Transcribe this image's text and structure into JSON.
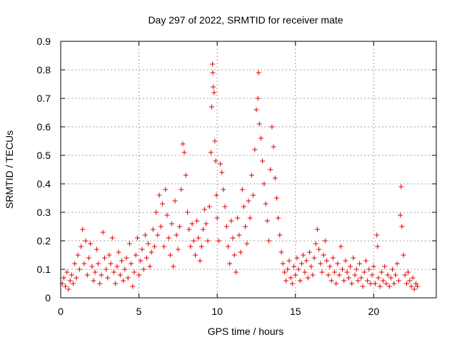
{
  "chart_data": {
    "type": "scatter",
    "title": "Day 297 of 2022, SRMTID for receiver mate",
    "xlabel": "GPS time / hours",
    "ylabel": "SRMTID / TECUs",
    "xlim": [
      0,
      24
    ],
    "ylim": [
      0,
      0.9
    ],
    "xticks": [
      0,
      5,
      10,
      15,
      20
    ],
    "yticks": [
      0,
      0.1,
      0.2,
      0.3,
      0.4,
      0.5,
      0.6,
      0.7,
      0.8,
      0.9
    ],
    "grid": true,
    "marker": "+",
    "color": "#e00000",
    "series": [
      {
        "name": "SRMTID",
        "points": [
          [
            0.1,
            0.05
          ],
          [
            0.2,
            0.07
          ],
          [
            0.3,
            0.04
          ],
          [
            0.4,
            0.09
          ],
          [
            0.5,
            0.03
          ],
          [
            0.6,
            0.06
          ],
          [
            0.7,
            0.08
          ],
          [
            0.8,
            0.05
          ],
          [
            0.9,
            0.12
          ],
          [
            1.0,
            0.07
          ],
          [
            1.1,
            0.15
          ],
          [
            1.2,
            0.1
          ],
          [
            1.3,
            0.18
          ],
          [
            1.4,
            0.24
          ],
          [
            1.5,
            0.12
          ],
          [
            1.6,
            0.2
          ],
          [
            1.7,
            0.08
          ],
          [
            1.8,
            0.14
          ],
          [
            1.9,
            0.19
          ],
          [
            2.0,
            0.11
          ],
          [
            2.1,
            0.06
          ],
          [
            2.2,
            0.09
          ],
          [
            2.3,
            0.17
          ],
          [
            2.4,
            0.12
          ],
          [
            2.5,
            0.05
          ],
          [
            2.6,
            0.08
          ],
          [
            2.7,
            0.23
          ],
          [
            2.8,
            0.14
          ],
          [
            2.9,
            0.1
          ],
          [
            3.0,
            0.07
          ],
          [
            3.1,
            0.15
          ],
          [
            3.2,
            0.12
          ],
          [
            3.3,
            0.21
          ],
          [
            3.4,
            0.09
          ],
          [
            3.5,
            0.05
          ],
          [
            3.6,
            0.11
          ],
          [
            3.7,
            0.16
          ],
          [
            3.8,
            0.08
          ],
          [
            3.9,
            0.13
          ],
          [
            4.0,
            0.06
          ],
          [
            4.1,
            0.1
          ],
          [
            4.2,
            0.14
          ],
          [
            4.3,
            0.07
          ],
          [
            4.4,
            0.19
          ],
          [
            4.5,
            0.12
          ],
          [
            4.6,
            0.04
          ],
          [
            4.7,
            0.09
          ],
          [
            4.8,
            0.15
          ],
          [
            4.9,
            0.21
          ],
          [
            5.0,
            0.08
          ],
          [
            5.1,
            0.13
          ],
          [
            5.2,
            0.17
          ],
          [
            5.3,
            0.1
          ],
          [
            5.4,
            0.22
          ],
          [
            5.5,
            0.14
          ],
          [
            5.6,
            0.19
          ],
          [
            5.7,
            0.11
          ],
          [
            5.8,
            0.16
          ],
          [
            5.9,
            0.24
          ],
          [
            6.0,
            0.18
          ],
          [
            6.1,
            0.3
          ],
          [
            6.2,
            0.22
          ],
          [
            6.3,
            0.36
          ],
          [
            6.4,
            0.25
          ],
          [
            6.5,
            0.33
          ],
          [
            6.6,
            0.18
          ],
          [
            6.7,
            0.38
          ],
          [
            6.8,
            0.29
          ],
          [
            6.9,
            0.21
          ],
          [
            7.0,
            0.15
          ],
          [
            7.1,
            0.26
          ],
          [
            7.2,
            0.11
          ],
          [
            7.3,
            0.34
          ],
          [
            7.4,
            0.22
          ],
          [
            7.5,
            0.17
          ],
          [
            7.6,
            0.25
          ],
          [
            7.7,
            0.38
          ],
          [
            7.8,
            0.54
          ],
          [
            7.9,
            0.51
          ],
          [
            8.0,
            0.43
          ],
          [
            8.1,
            0.3
          ],
          [
            8.2,
            0.24
          ],
          [
            8.3,
            0.18
          ],
          [
            8.4,
            0.26
          ],
          [
            8.5,
            0.2
          ],
          [
            8.6,
            0.15
          ],
          [
            8.7,
            0.27
          ],
          [
            8.8,
            0.21
          ],
          [
            8.9,
            0.13
          ],
          [
            9.0,
            0.18
          ],
          [
            9.1,
            0.24
          ],
          [
            9.2,
            0.31
          ],
          [
            9.3,
            0.26
          ],
          [
            9.4,
            0.2
          ],
          [
            9.5,
            0.32
          ],
          [
            9.6,
            0.51
          ],
          [
            9.65,
            0.67
          ],
          [
            9.7,
            0.82
          ],
          [
            9.72,
            0.79
          ],
          [
            9.75,
            0.74
          ],
          [
            9.8,
            0.72
          ],
          [
            9.85,
            0.55
          ],
          [
            9.9,
            0.48
          ],
          [
            9.95,
            0.36
          ],
          [
            10.0,
            0.28
          ],
          [
            10.1,
            0.2
          ],
          [
            10.2,
            0.47
          ],
          [
            10.3,
            0.44
          ],
          [
            10.4,
            0.38
          ],
          [
            10.5,
            0.32
          ],
          [
            10.6,
            0.25
          ],
          [
            10.7,
            0.18
          ],
          [
            10.8,
            0.12
          ],
          [
            10.9,
            0.27
          ],
          [
            11.0,
            0.21
          ],
          [
            11.1,
            0.15
          ],
          [
            11.2,
            0.09
          ],
          [
            11.3,
            0.28
          ],
          [
            11.4,
            0.22
          ],
          [
            11.5,
            0.16
          ],
          [
            11.6,
            0.38
          ],
          [
            11.7,
            0.32
          ],
          [
            11.8,
            0.25
          ],
          [
            11.9,
            0.19
          ],
          [
            12.0,
            0.34
          ],
          [
            12.1,
            0.28
          ],
          [
            12.2,
            0.43
          ],
          [
            12.3,
            0.36
          ],
          [
            12.4,
            0.52
          ],
          [
            12.5,
            0.66
          ],
          [
            12.6,
            0.7
          ],
          [
            12.65,
            0.79
          ],
          [
            12.7,
            0.61
          ],
          [
            12.8,
            0.56
          ],
          [
            12.9,
            0.48
          ],
          [
            13.0,
            0.4
          ],
          [
            13.1,
            0.33
          ],
          [
            13.2,
            0.27
          ],
          [
            13.3,
            0.2
          ],
          [
            13.4,
            0.45
          ],
          [
            13.5,
            0.6
          ],
          [
            13.6,
            0.53
          ],
          [
            13.7,
            0.42
          ],
          [
            13.8,
            0.35
          ],
          [
            13.9,
            0.28
          ],
          [
            14.0,
            0.22
          ],
          [
            14.1,
            0.16
          ],
          [
            14.2,
            0.12
          ],
          [
            14.3,
            0.09
          ],
          [
            14.4,
            0.06
          ],
          [
            14.5,
            0.1
          ],
          [
            14.6,
            0.13
          ],
          [
            14.7,
            0.07
          ],
          [
            14.8,
            0.05
          ],
          [
            14.9,
            0.11
          ],
          [
            15.0,
            0.08
          ],
          [
            15.1,
            0.14
          ],
          [
            15.2,
            0.1
          ],
          [
            15.3,
            0.06
          ],
          [
            15.4,
            0.12
          ],
          [
            15.5,
            0.15
          ],
          [
            15.6,
            0.09
          ],
          [
            15.7,
            0.13
          ],
          [
            15.8,
            0.07
          ],
          [
            15.9,
            0.16
          ],
          [
            16.0,
            0.11
          ],
          [
            16.1,
            0.08
          ],
          [
            16.2,
            0.14
          ],
          [
            16.3,
            0.19
          ],
          [
            16.4,
            0.24
          ],
          [
            16.5,
            0.17
          ],
          [
            16.6,
            0.12
          ],
          [
            16.7,
            0.09
          ],
          [
            16.8,
            0.15
          ],
          [
            16.9,
            0.2
          ],
          [
            17.0,
            0.13
          ],
          [
            17.1,
            0.08
          ],
          [
            17.2,
            0.11
          ],
          [
            17.3,
            0.06
          ],
          [
            17.4,
            0.14
          ],
          [
            17.5,
            0.09
          ],
          [
            17.6,
            0.05
          ],
          [
            17.7,
            0.12
          ],
          [
            17.8,
            0.08
          ],
          [
            17.9,
            0.18
          ],
          [
            18.0,
            0.1
          ],
          [
            18.1,
            0.06
          ],
          [
            18.2,
            0.13
          ],
          [
            18.3,
            0.09
          ],
          [
            18.4,
            0.07
          ],
          [
            18.5,
            0.11
          ],
          [
            18.6,
            0.05
          ],
          [
            18.7,
            0.14
          ],
          [
            18.8,
            0.08
          ],
          [
            18.9,
            0.1
          ],
          [
            19.0,
            0.06
          ],
          [
            19.1,
            0.12
          ],
          [
            19.2,
            0.07
          ],
          [
            19.3,
            0.04
          ],
          [
            19.4,
            0.09
          ],
          [
            19.5,
            0.13
          ],
          [
            19.6,
            0.06
          ],
          [
            19.7,
            0.1
          ],
          [
            19.8,
            0.05
          ],
          [
            19.9,
            0.08
          ],
          [
            20.0,
            0.11
          ],
          [
            20.1,
            0.05
          ],
          [
            20.2,
            0.22
          ],
          [
            20.25,
            0.18
          ],
          [
            20.3,
            0.07
          ],
          [
            20.4,
            0.04
          ],
          [
            20.5,
            0.09
          ],
          [
            20.6,
            0.06
          ],
          [
            20.7,
            0.11
          ],
          [
            20.8,
            0.05
          ],
          [
            20.9,
            0.08
          ],
          [
            21.0,
            0.04
          ],
          [
            21.1,
            0.07
          ],
          [
            21.2,
            0.1
          ],
          [
            21.3,
            0.05
          ],
          [
            21.4,
            0.08
          ],
          [
            21.5,
            0.12
          ],
          [
            21.6,
            0.06
          ],
          [
            21.7,
            0.29
          ],
          [
            21.75,
            0.39
          ],
          [
            21.8,
            0.25
          ],
          [
            21.9,
            0.15
          ],
          [
            22.0,
            0.08
          ],
          [
            22.1,
            0.05
          ],
          [
            22.2,
            0.09
          ],
          [
            22.3,
            0.06
          ],
          [
            22.4,
            0.04
          ],
          [
            22.5,
            0.07
          ],
          [
            22.6,
            0.03
          ],
          [
            22.7,
            0.05
          ],
          [
            22.8,
            0.04
          ]
        ]
      }
    ]
  }
}
